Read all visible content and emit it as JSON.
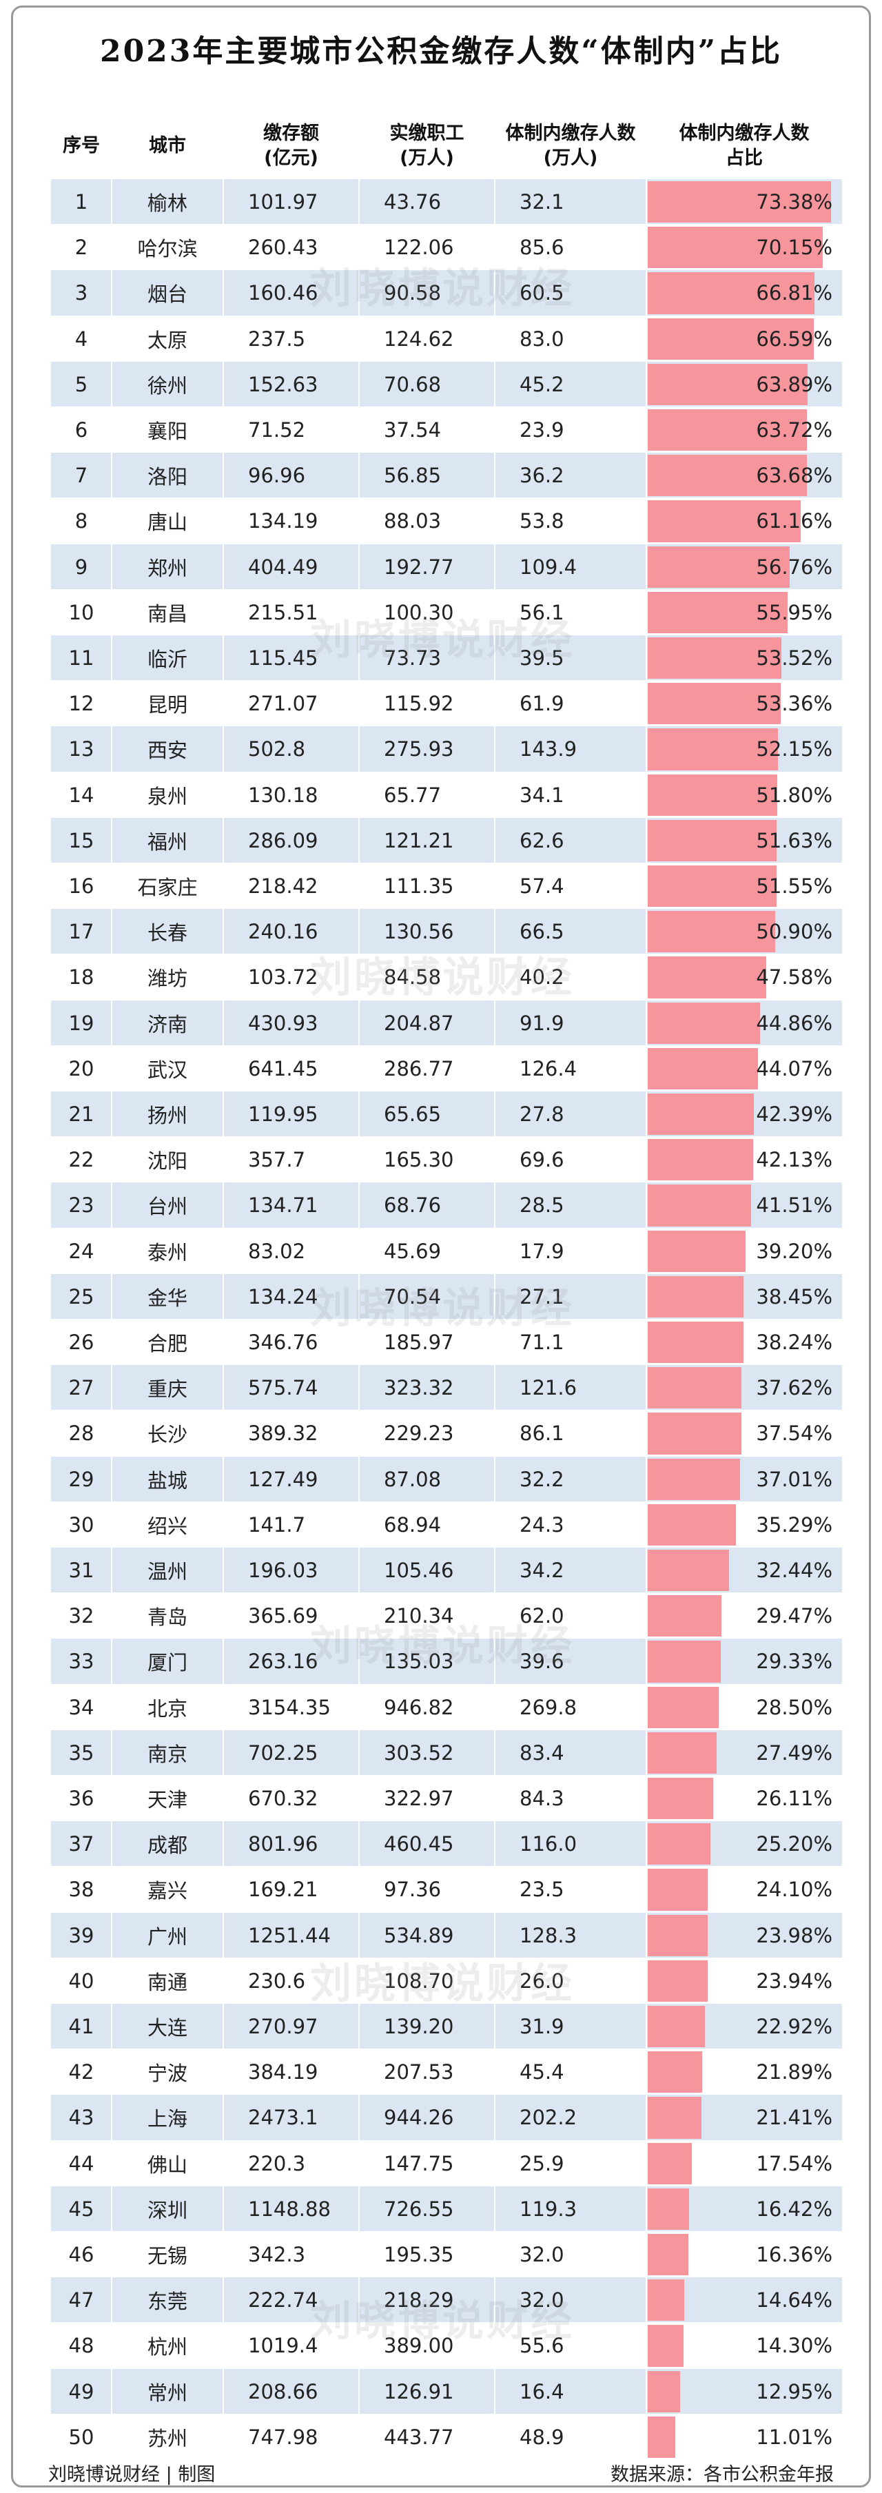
{
  "title": "2023年主要城市公积金缴存人数“体制内”占比",
  "watermark": "刘晓博说财经",
  "table": {
    "headers": [
      [
        "序号"
      ],
      [
        "城市"
      ],
      [
        "缴存额",
        "(亿元)"
      ],
      [
        "实缴职工",
        "(万人)"
      ],
      [
        "体制内缴存人数",
        "(万人)"
      ],
      [
        "体制内缴存人数",
        "占比"
      ]
    ],
    "rows": [
      [
        "1",
        "榆林",
        "101.97",
        "43.76",
        "32.1"
      ],
      [
        "2",
        "哈尔滨",
        "260.43",
        "122.06",
        "85.6"
      ],
      [
        "3",
        "烟台",
        "160.46",
        "90.58",
        "60.5"
      ],
      [
        "4",
        "太原",
        "237.5",
        "124.62",
        "83.0"
      ],
      [
        "5",
        "徐州",
        "152.63",
        "70.68",
        "45.2"
      ],
      [
        "6",
        "襄阳",
        "71.52",
        "37.54",
        "23.9"
      ],
      [
        "7",
        "洛阳",
        "96.96",
        "56.85",
        "36.2"
      ],
      [
        "8",
        "唐山",
        "134.19",
        "88.03",
        "53.8"
      ],
      [
        "9",
        "郑州",
        "404.49",
        "192.77",
        "109.4"
      ],
      [
        "10",
        "南昌",
        "215.51",
        "100.30",
        "56.1"
      ],
      [
        "11",
        "临沂",
        "115.45",
        "73.73",
        "39.5"
      ],
      [
        "12",
        "昆明",
        "271.07",
        "115.92",
        "61.9"
      ],
      [
        "13",
        "西安",
        "502.8",
        "275.93",
        "143.9"
      ],
      [
        "14",
        "泉州",
        "130.18",
        "65.77",
        "34.1"
      ],
      [
        "15",
        "福州",
        "286.09",
        "121.21",
        "62.6"
      ],
      [
        "16",
        "石家庄",
        "218.42",
        "111.35",
        "57.4"
      ],
      [
        "17",
        "长春",
        "240.16",
        "130.56",
        "66.5"
      ],
      [
        "18",
        "潍坊",
        "103.72",
        "84.58",
        "40.2"
      ],
      [
        "19",
        "济南",
        "430.93",
        "204.87",
        "91.9"
      ],
      [
        "20",
        "武汉",
        "641.45",
        "286.77",
        "126.4"
      ],
      [
        "21",
        "扬州",
        "119.95",
        "65.65",
        "27.8"
      ],
      [
        "22",
        "沈阳",
        "357.7",
        "165.30",
        "69.6"
      ],
      [
        "23",
        "台州",
        "134.71",
        "68.76",
        "28.5"
      ],
      [
        "24",
        "泰州",
        "83.02",
        "45.69",
        "17.9"
      ],
      [
        "25",
        "金华",
        "134.24",
        "70.54",
        "27.1"
      ],
      [
        "26",
        "合肥",
        "346.76",
        "185.97",
        "71.1"
      ],
      [
        "27",
        "重庆",
        "575.74",
        "323.32",
        "121.6"
      ],
      [
        "28",
        "长沙",
        "389.32",
        "229.23",
        "86.1"
      ],
      [
        "29",
        "盐城",
        "127.49",
        "87.08",
        "32.2"
      ],
      [
        "30",
        "绍兴",
        "141.7",
        "68.94",
        "24.3"
      ],
      [
        "31",
        "温州",
        "196.03",
        "105.46",
        "34.2"
      ],
      [
        "32",
        "青岛",
        "365.69",
        "210.34",
        "62.0"
      ],
      [
        "33",
        "厦门",
        "263.16",
        "135.03",
        "39.6"
      ],
      [
        "34",
        "北京",
        "3154.35",
        "946.82",
        "269.8"
      ],
      [
        "35",
        "南京",
        "702.25",
        "303.52",
        "83.4"
      ],
      [
        "36",
        "天津",
        "670.32",
        "322.97",
        "84.3"
      ],
      [
        "37",
        "成都",
        "801.96",
        "460.45",
        "116.0"
      ],
      [
        "38",
        "嘉兴",
        "169.21",
        "97.36",
        "23.5"
      ],
      [
        "39",
        "广州",
        "1251.44",
        "534.89",
        "128.3"
      ],
      [
        "40",
        "南通",
        "230.6",
        "108.70",
        "26.0"
      ],
      [
        "41",
        "大连",
        "270.97",
        "139.20",
        "31.9"
      ],
      [
        "42",
        "宁波",
        "384.19",
        "207.53",
        "45.4"
      ],
      [
        "43",
        "上海",
        "2473.1",
        "944.26",
        "202.2"
      ],
      [
        "44",
        "佛山",
        "220.3",
        "147.75",
        "25.9"
      ],
      [
        "45",
        "深圳",
        "1148.88",
        "726.55",
        "119.3"
      ],
      [
        "46",
        "无锡",
        "342.3",
        "195.35",
        "32.0"
      ],
      [
        "47",
        "东莞",
        "222.74",
        "218.29",
        "32.0"
      ],
      [
        "48",
        "杭州",
        "1019.4",
        "389.00",
        "55.6"
      ],
      [
        "49",
        "常州",
        "208.66",
        "126.91",
        "16.4"
      ],
      [
        "50",
        "苏州",
        "747.98",
        "443.77",
        "48.9"
      ]
    ],
    "share": {
      "color": "#f7959c",
      "values": [
        73.38,
        70.15,
        66.81,
        66.59,
        63.89,
        63.72,
        63.68,
        61.16,
        56.76,
        55.95,
        53.52,
        53.36,
        52.15,
        51.8,
        51.63,
        51.55,
        50.9,
        47.58,
        44.86,
        44.07,
        42.39,
        42.13,
        41.51,
        39.2,
        38.45,
        38.24,
        37.62,
        37.54,
        37.01,
        35.29,
        32.44,
        29.47,
        29.33,
        28.5,
        27.49,
        26.11,
        25.2,
        24.1,
        23.98,
        23.94,
        22.92,
        21.89,
        21.41,
        17.54,
        16.42,
        16.36,
        14.64,
        14.3,
        12.95,
        11.01
      ],
      "value_labels": [
        "73.38%",
        "70.15%",
        "66.81%",
        "66.59%",
        "63.89%",
        "63.72%",
        "63.68%",
        "61.16%",
        "56.76%",
        "55.95%",
        "53.52%",
        "53.36%",
        "52.15%",
        "51.80%",
        "51.63%",
        "51.55%",
        "50.90%",
        "47.58%",
        "44.86%",
        "44.07%",
        "42.39%",
        "42.13%",
        "41.51%",
        "39.20%",
        "38.45%",
        "38.24%",
        "37.62%",
        "37.54%",
        "37.01%",
        "35.29%",
        "32.44%",
        "29.47%",
        "29.33%",
        "28.50%",
        "27.49%",
        "26.11%",
        "25.20%",
        "24.10%",
        "23.98%",
        "23.94%",
        "22.92%",
        "21.89%",
        "21.41%",
        "17.54%",
        "16.42%",
        "16.36%",
        "14.64%",
        "14.30%",
        "12.95%",
        "11.01%"
      ]
    }
  },
  "footer": {
    "left": "刘晓博说财经 | 制图",
    "right": "数据来源：各市公积金年报"
  }
}
